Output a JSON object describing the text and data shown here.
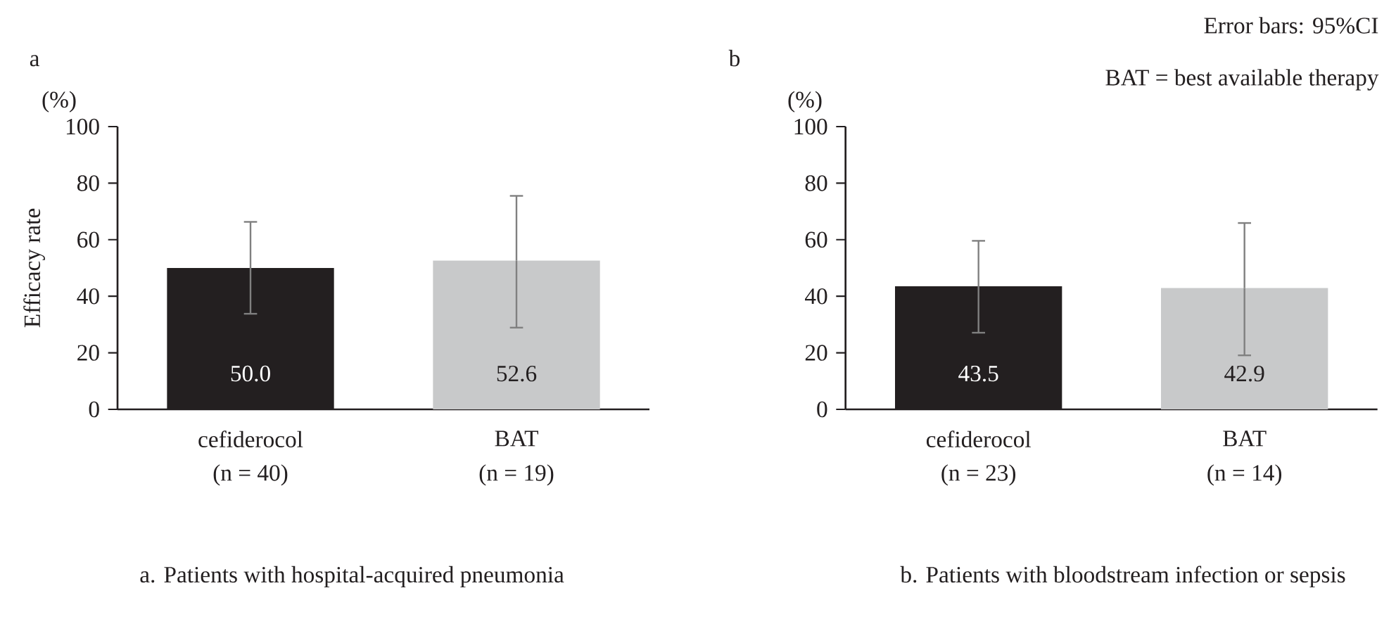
{
  "chart_data": [
    {
      "type": "bar",
      "title": "a",
      "subtitle": "a. Patients with hospital-acquired pneumonia",
      "ylabel": "Efficacy rate",
      "categories": [
        "cefiderocol",
        "BAT"
      ],
      "values": [
        50.0,
        52.6
      ],
      "colors": [
        "#231f20",
        "#c8c9ca"
      ],
      "errors": [
        [
          33.8,
          66.3
        ],
        [
          28.9,
          75.5
        ]
      ],
      "value_labels": [
        "50.0",
        "52.6"
      ],
      "ylim": [
        0,
        100
      ],
      "yticks": [
        0,
        20,
        40,
        60,
        80,
        100
      ],
      "grid": false,
      "annotations": [
        "(%)",
        "(n = 40)",
        "(n = 19)"
      ]
    },
    {
      "type": "bar",
      "title": "b",
      "subtitle": "b. Patients with bloodstream infection or sepsis",
      "categories": [
        "cefiderocol",
        "BAT"
      ],
      "values": [
        43.5,
        42.9
      ],
      "colors": [
        "#231f20",
        "#c8c9ca"
      ],
      "errors": [
        [
          27.1,
          59.6
        ],
        [
          19.1,
          65.9
        ]
      ],
      "value_labels": [
        "43.5",
        "42.9"
      ],
      "ylim": [
        0,
        100
      ],
      "yticks": [
        0,
        20,
        40,
        60,
        80,
        100
      ],
      "grid": false,
      "annotations": [
        "(%)",
        "Error bars: 95%CI",
        "BAT = best available therapy",
        "(n = 23)",
        "(n = 14)"
      ]
    }
  ]
}
